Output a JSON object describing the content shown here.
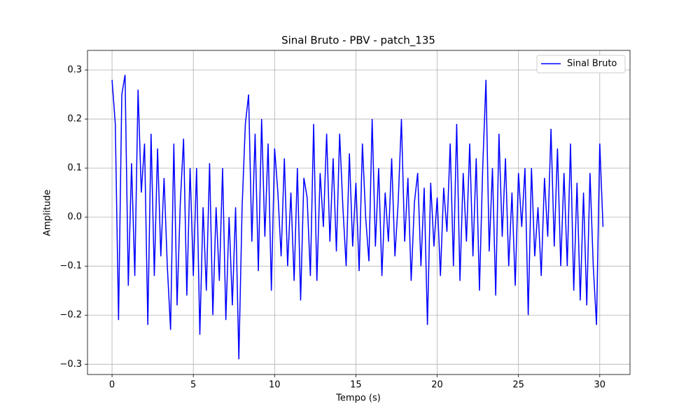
{
  "chart_data": {
    "type": "line",
    "title": "Sinal Bruto - PBV - patch_135",
    "xlabel": "Tempo (s)",
    "ylabel": "Amplitude",
    "x": [
      0,
      0.2,
      0.4,
      0.6,
      0.8,
      1,
      1.2,
      1.4,
      1.6,
      1.8,
      2,
      2.2,
      2.4,
      2.6,
      2.8,
      3,
      3.2,
      3.4,
      3.6,
      3.8,
      4,
      4.2,
      4.4,
      4.6,
      4.8,
      5,
      5.2,
      5.4,
      5.6,
      5.8,
      6,
      6.2,
      6.4,
      6.6,
      6.8,
      7,
      7.2,
      7.4,
      7.6,
      7.8,
      8,
      8.2,
      8.4,
      8.6,
      8.8,
      9,
      9.2,
      9.4,
      9.6,
      9.8,
      10,
      10.2,
      10.4,
      10.6,
      10.8,
      11,
      11.2,
      11.4,
      11.6,
      11.8,
      12,
      12.2,
      12.4,
      12.6,
      12.8,
      13,
      13.2,
      13.4,
      13.6,
      13.8,
      14,
      14.2,
      14.4,
      14.6,
      14.8,
      15,
      15.2,
      15.4,
      15.6,
      15.8,
      16,
      16.2,
      16.4,
      16.6,
      16.8,
      17,
      17.2,
      17.4,
      17.6,
      17.8,
      18,
      18.2,
      18.4,
      18.6,
      18.8,
      19,
      19.2,
      19.4,
      19.6,
      19.8,
      20,
      20.2,
      20.4,
      20.6,
      20.8,
      21,
      21.2,
      21.4,
      21.6,
      21.8,
      22,
      22.2,
      22.4,
      22.6,
      22.8,
      23,
      23.2,
      23.4,
      23.6,
      23.8,
      24,
      24.2,
      24.4,
      24.6,
      24.8,
      25,
      25.2,
      25.4,
      25.6,
      25.8,
      26,
      26.2,
      26.4,
      26.6,
      26.8,
      27,
      27.2,
      27.4,
      27.6,
      27.8,
      28,
      28.2,
      28.4,
      28.6,
      28.8,
      29,
      29.2,
      29.4,
      29.6,
      29.8,
      30,
      30.2
    ],
    "series": [
      {
        "name": "Sinal Bruto",
        "color": "#0000ff",
        "values": [
          0.28,
          0.19,
          -0.21,
          0.25,
          0.29,
          -0.14,
          0.11,
          -0.12,
          0.26,
          0.05,
          0.15,
          -0.22,
          0.17,
          -0.12,
          0.14,
          -0.08,
          0.08,
          -0.1,
          -0.23,
          0.15,
          -0.18,
          0.03,
          0.16,
          -0.16,
          0.1,
          -0.12,
          0.1,
          -0.24,
          0.02,
          -0.15,
          0.11,
          -0.2,
          0.02,
          -0.13,
          0.1,
          -0.21,
          0,
          -0.18,
          0.02,
          -0.29,
          0.02,
          0.19,
          0.25,
          -0.05,
          0.17,
          -0.11,
          0.2,
          -0.04,
          0.15,
          -0.15,
          0.14,
          0.05,
          -0.08,
          0.12,
          -0.1,
          0.05,
          -0.13,
          0.1,
          -0.17,
          0.08,
          0.04,
          -0.12,
          0.19,
          -0.13,
          0.09,
          -0.02,
          0.17,
          -0.05,
          0.12,
          -0.07,
          0.17,
          0.02,
          -0.1,
          0.13,
          -0.06,
          0.07,
          -0.11,
          0.15,
          0,
          -0.09,
          0.2,
          -0.06,
          0.1,
          -0.12,
          0.05,
          -0.05,
          0.12,
          -0.08,
          0.03,
          0.2,
          -0.05,
          0.08,
          -0.13,
          0.03,
          0.09,
          -0.1,
          0.06,
          -0.22,
          0.07,
          -0.06,
          0.04,
          -0.12,
          0.06,
          -0.03,
          0.15,
          -0.1,
          0.19,
          -0.13,
          0.09,
          -0.05,
          0.15,
          -0.08,
          0.12,
          -0.15,
          0.1,
          0.28,
          -0.07,
          0.1,
          -0.16,
          0.17,
          -0.04,
          0.12,
          -0.1,
          0.05,
          -0.14,
          0.09,
          -0.02,
          0.1,
          -0.2,
          0.1,
          -0.08,
          0.02,
          -0.12,
          0.08,
          -0.04,
          0.18,
          -0.06,
          0.14,
          -0.1,
          0.09,
          -0.1,
          0.15,
          -0.15,
          0.07,
          -0.17,
          0.05,
          -0.18,
          0.09,
          -0.1,
          -0.22,
          0.15,
          -0.02
        ]
      }
    ],
    "xlim": [
      -1.51,
      31.86
    ],
    "ylim": [
      -0.321,
      0.34
    ],
    "xticks": [
      0,
      5,
      10,
      15,
      20,
      25,
      30
    ],
    "yticks": [
      {
        "value": -0.3,
        "label": "−0.3"
      },
      {
        "value": -0.2,
        "label": "−0.2"
      },
      {
        "value": -0.1,
        "label": "−0.1"
      },
      {
        "value": 0,
        "label": "0.0"
      },
      0.1,
      0.2,
      0.3
    ],
    "grid": true,
    "legend": "upper right"
  }
}
